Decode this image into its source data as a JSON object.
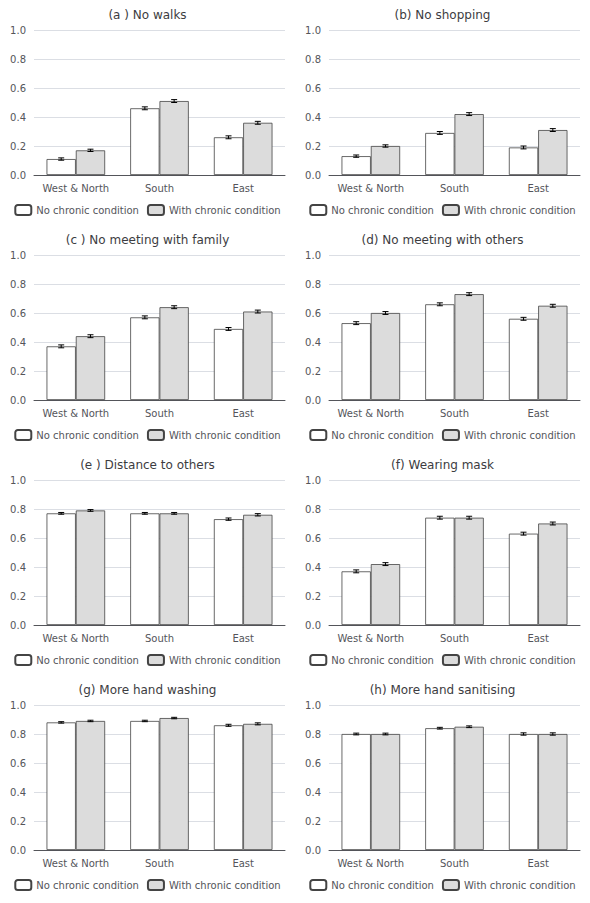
{
  "chart_data": [
    {
      "type": "bar",
      "title": "(a ) No walks",
      "categories": [
        "West & North",
        "South",
        "East"
      ],
      "series": [
        {
          "name": "No chronic condition",
          "color": "#ffffff",
          "values": [
            0.11,
            0.46,
            0.26
          ],
          "errors": [
            0.008,
            0.01,
            0.01
          ]
        },
        {
          "name": "With chronic condition",
          "color": "#dcdcdc",
          "values": [
            0.17,
            0.51,
            0.36
          ],
          "errors": [
            0.008,
            0.01,
            0.01
          ]
        }
      ],
      "ylim": [
        0.0,
        1.0
      ],
      "yticks": [
        {
          "value": 0.0,
          "label": "0.0"
        },
        0.2,
        0.4,
        0.6,
        0.8,
        {
          "value": 1.0,
          "label": "1.0"
        }
      ],
      "grid": true,
      "legend": "bottom"
    },
    {
      "type": "bar",
      "title": "(b) No shopping",
      "categories": [
        "West & North",
        "South",
        "East"
      ],
      "series": [
        {
          "name": "No chronic condition",
          "color": "#ffffff",
          "values": [
            0.13,
            0.29,
            0.19
          ],
          "errors": [
            0.008,
            0.01,
            0.01
          ]
        },
        {
          "name": "With chronic condition",
          "color": "#dcdcdc",
          "values": [
            0.2,
            0.42,
            0.31
          ],
          "errors": [
            0.008,
            0.01,
            0.01
          ]
        }
      ],
      "ylim": [
        0.0,
        1.0
      ],
      "yticks": [
        {
          "value": 0.0,
          "label": "0.0"
        },
        0.2,
        0.4,
        0.6,
        0.8,
        {
          "value": 1.0,
          "label": "1.0"
        }
      ],
      "grid": true,
      "legend": "bottom"
    },
    {
      "type": "bar",
      "title": "(c ) No meeting with family",
      "categories": [
        "West & North",
        "South",
        "East"
      ],
      "series": [
        {
          "name": "No chronic condition",
          "color": "#ffffff",
          "values": [
            0.37,
            0.57,
            0.49
          ],
          "errors": [
            0.01,
            0.01,
            0.01
          ]
        },
        {
          "name": "With chronic condition",
          "color": "#dcdcdc",
          "values": [
            0.44,
            0.64,
            0.61
          ],
          "errors": [
            0.01,
            0.01,
            0.01
          ]
        }
      ],
      "ylim": [
        0.0,
        1.0
      ],
      "yticks": [
        {
          "value": 0.0,
          "label": "0.0"
        },
        0.2,
        0.4,
        0.6,
        0.8,
        {
          "value": 1.0,
          "label": "1.0"
        }
      ],
      "grid": true,
      "legend": "bottom"
    },
    {
      "type": "bar",
      "title": "(d) No meeting with others",
      "categories": [
        "West & North",
        "South",
        "East"
      ],
      "series": [
        {
          "name": "No chronic condition",
          "color": "#ffffff",
          "values": [
            0.53,
            0.66,
            0.56
          ],
          "errors": [
            0.01,
            0.01,
            0.01
          ]
        },
        {
          "name": "With chronic condition",
          "color": "#dcdcdc",
          "values": [
            0.6,
            0.73,
            0.65
          ],
          "errors": [
            0.01,
            0.01,
            0.01
          ]
        }
      ],
      "ylim": [
        0.0,
        1.0
      ],
      "yticks": [
        {
          "value": 0.0,
          "label": "0.0"
        },
        0.2,
        0.4,
        0.6,
        0.8,
        {
          "value": 1.0,
          "label": "1.0"
        }
      ],
      "grid": true,
      "legend": "bottom"
    },
    {
      "type": "bar",
      "title": "(e ) Distance to others",
      "categories": [
        "West & North",
        "South",
        "East"
      ],
      "series": [
        {
          "name": "No chronic condition",
          "color": "#ffffff",
          "values": [
            0.77,
            0.77,
            0.73
          ],
          "errors": [
            0.006,
            0.006,
            0.008
          ]
        },
        {
          "name": "With chronic condition",
          "color": "#dcdcdc",
          "values": [
            0.79,
            0.77,
            0.76
          ],
          "errors": [
            0.006,
            0.006,
            0.008
          ]
        }
      ],
      "ylim": [
        0.0,
        1.0
      ],
      "yticks": [
        {
          "value": 0.0,
          "label": "0.0"
        },
        0.2,
        0.4,
        0.6,
        0.8,
        {
          "value": 1.0,
          "label": "1.0"
        }
      ],
      "grid": true,
      "legend": "bottom"
    },
    {
      "type": "bar",
      "title": "(f) Wearing mask",
      "categories": [
        "West & North",
        "South",
        "East"
      ],
      "series": [
        {
          "name": "No chronic condition",
          "color": "#ffffff",
          "values": [
            0.37,
            0.74,
            0.63
          ],
          "errors": [
            0.01,
            0.01,
            0.01
          ]
        },
        {
          "name": "With chronic condition",
          "color": "#dcdcdc",
          "values": [
            0.42,
            0.74,
            0.7
          ],
          "errors": [
            0.01,
            0.01,
            0.01
          ]
        }
      ],
      "ylim": [
        0.0,
        1.0
      ],
      "yticks": [
        {
          "value": 0.0,
          "label": "0.0"
        },
        0.2,
        0.4,
        0.6,
        0.8,
        {
          "value": 1.0,
          "label": "1.0"
        }
      ],
      "grid": true,
      "legend": "bottom"
    },
    {
      "type": "bar",
      "title": "(g) More hand washing",
      "categories": [
        "West & North",
        "South",
        "East"
      ],
      "series": [
        {
          "name": "No chronic condition",
          "color": "#ffffff",
          "values": [
            0.88,
            0.89,
            0.86
          ],
          "errors": [
            0.005,
            0.005,
            0.007
          ]
        },
        {
          "name": "With chronic condition",
          "color": "#dcdcdc",
          "values": [
            0.89,
            0.91,
            0.87
          ],
          "errors": [
            0.005,
            0.005,
            0.007
          ]
        }
      ],
      "ylim": [
        0.0,
        1.0
      ],
      "yticks": [
        {
          "value": 0.0,
          "label": "0.0"
        },
        0.2,
        0.4,
        0.6,
        0.8,
        {
          "value": 1.0,
          "label": "1.0"
        }
      ],
      "grid": true,
      "legend": "bottom"
    },
    {
      "type": "bar",
      "title": "(h) More hand sanitising",
      "categories": [
        "West & North",
        "South",
        "East"
      ],
      "series": [
        {
          "name": "No chronic condition",
          "color": "#ffffff",
          "values": [
            0.8,
            0.84,
            0.8
          ],
          "errors": [
            0.006,
            0.006,
            0.008
          ]
        },
        {
          "name": "With chronic condition",
          "color": "#dcdcdc",
          "values": [
            0.8,
            0.85,
            0.8
          ],
          "errors": [
            0.006,
            0.006,
            0.008
          ]
        }
      ],
      "ylim": [
        0.0,
        1.0
      ],
      "yticks": [
        {
          "value": 0.0,
          "label": "0.0"
        },
        0.2,
        0.4,
        0.6,
        0.8,
        {
          "value": 1.0,
          "label": "1.0"
        }
      ],
      "grid": true,
      "legend": "bottom"
    }
  ]
}
